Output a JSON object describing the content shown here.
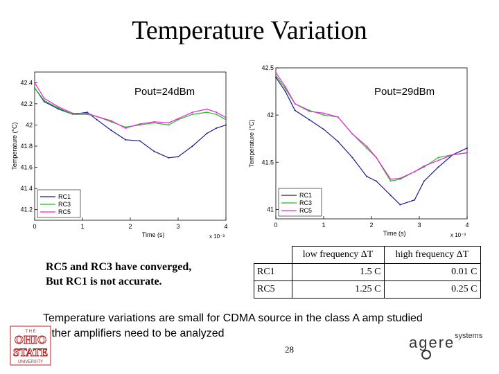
{
  "slide": {
    "title": "Temperature Variation",
    "note_line1": "RC5 and RC3 have converged,",
    "note_line2": "But RC1 is not accurate.",
    "bullet1": "Temperature variations are small for CDMA source in the  class A amp studied",
    "bullet2": "Other amplifiers need to be analyzed",
    "page_number": "28",
    "logo_osu_text": "THE OHIO STATE UNIVERSITY",
    "logo_agere_text": "agere systems"
  },
  "table": {
    "headers": [
      "",
      "low frequency ΔT",
      "high frequency ΔT"
    ],
    "rows": [
      {
        "label": "RC1",
        "low": "1.5 C",
        "high": "0.01 C"
      },
      {
        "label": "RC5",
        "low": "1.25 C",
        "high": "0.25 C"
      }
    ]
  },
  "colors": {
    "RC1": "#1a1a8c",
    "RC3": "#22bb22",
    "RC5": "#ee22dd"
  },
  "chart_data": [
    {
      "type": "line",
      "title": "Pout=24dBm",
      "xlabel": "Time (s)",
      "ylabel": "Temperature (°C)",
      "x_multiplier": "x 10⁻³",
      "xlim": [
        0,
        4
      ],
      "ylim": [
        41.1,
        42.5
      ],
      "x_ticks": [
        "0",
        "1",
        "2",
        "3",
        "4"
      ],
      "y_ticks": [
        "42.4",
        "42.2",
        "42",
        "41.8",
        "41.6",
        "41.4",
        "41.2"
      ],
      "legend": [
        "RC1",
        "RC3",
        "RC5"
      ],
      "legend_position": "bottom-left",
      "series": [
        {
          "name": "RC1",
          "x": [
            0,
            0.2,
            0.5,
            0.8,
            1.1,
            1.3,
            1.6,
            1.9,
            2.2,
            2.5,
            2.8,
            3.0,
            3.3,
            3.6,
            3.8,
            4.0
          ],
          "y": [
            42.35,
            42.22,
            42.15,
            42.1,
            42.12,
            42.05,
            41.95,
            41.86,
            41.85,
            41.75,
            41.69,
            41.7,
            41.8,
            41.92,
            41.97,
            42.0
          ]
        },
        {
          "name": "RC3",
          "x": [
            0,
            0.2,
            0.5,
            0.8,
            1.1,
            1.3,
            1.6,
            1.9,
            2.2,
            2.5,
            2.8,
            3.0,
            3.3,
            3.6,
            3.8,
            4.0
          ],
          "y": [
            42.35,
            42.23,
            42.16,
            42.1,
            42.1,
            42.08,
            42.03,
            41.98,
            42.0,
            42.02,
            42.0,
            42.05,
            42.1,
            42.12,
            42.1,
            42.05
          ]
        },
        {
          "name": "RC5",
          "x": [
            0,
            0.2,
            0.5,
            0.8,
            1.1,
            1.3,
            1.6,
            1.9,
            2.2,
            2.5,
            2.8,
            3.0,
            3.3,
            3.6,
            3.8,
            4.0
          ],
          "y": [
            42.4,
            42.25,
            42.17,
            42.11,
            42.11,
            42.08,
            42.04,
            41.97,
            42.01,
            42.03,
            42.02,
            42.06,
            42.12,
            42.15,
            42.12,
            42.07
          ]
        }
      ]
    },
    {
      "type": "line",
      "title": "Pout=29dBm",
      "xlabel": "Time (s)",
      "ylabel": "Temperature (°C)",
      "x_multiplier": "x 10⁻³",
      "xlim": [
        0,
        4
      ],
      "ylim": [
        40.9,
        42.5
      ],
      "x_ticks": [
        "0",
        "1",
        "2",
        "3",
        "4"
      ],
      "y_ticks": [
        "42.5",
        "42",
        "41.5",
        "41"
      ],
      "legend": [
        "RC1",
        "RC3",
        "RC5"
      ],
      "legend_position": "bottom-left",
      "series": [
        {
          "name": "RC1",
          "x": [
            0,
            0.2,
            0.4,
            0.7,
            1.0,
            1.3,
            1.6,
            1.9,
            2.1,
            2.4,
            2.6,
            2.9,
            3.1,
            3.4,
            3.7,
            4.0
          ],
          "y": [
            42.4,
            42.25,
            42.05,
            41.95,
            41.85,
            41.72,
            41.55,
            41.35,
            41.3,
            41.15,
            41.05,
            41.1,
            41.3,
            41.45,
            41.58,
            41.65
          ]
        },
        {
          "name": "RC3",
          "x": [
            0,
            0.2,
            0.4,
            0.7,
            1.0,
            1.3,
            1.6,
            1.9,
            2.1,
            2.4,
            2.6,
            2.9,
            3.1,
            3.4,
            3.7,
            4.0
          ],
          "y": [
            42.42,
            42.28,
            42.12,
            42.05,
            42.0,
            41.98,
            41.8,
            41.65,
            41.55,
            41.3,
            41.32,
            41.4,
            41.45,
            41.55,
            41.58,
            41.6
          ]
        },
        {
          "name": "RC5",
          "x": [
            0,
            0.2,
            0.4,
            0.7,
            1.0,
            1.3,
            1.6,
            1.9,
            2.1,
            2.4,
            2.6,
            2.9,
            3.1,
            3.4,
            3.7,
            4.0
          ],
          "y": [
            42.45,
            42.3,
            42.12,
            42.04,
            42.02,
            41.98,
            41.8,
            41.67,
            41.55,
            41.32,
            41.33,
            41.4,
            41.46,
            41.52,
            41.58,
            41.6
          ]
        }
      ]
    }
  ]
}
